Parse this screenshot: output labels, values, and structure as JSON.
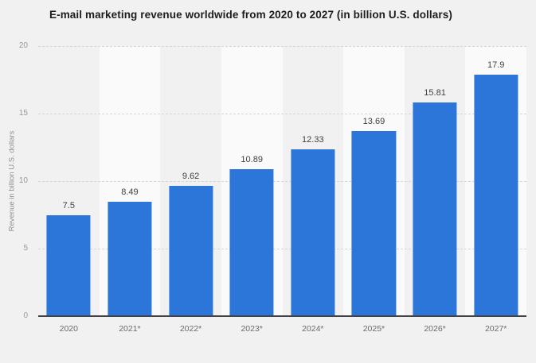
{
  "chart_data": {
    "type": "bar",
    "title": "E-mail marketing revenue worldwide from 2020 to 2027 (in billion U.S. dollars)",
    "categories": [
      "2020",
      "2021*",
      "2022*",
      "2023*",
      "2024*",
      "2025*",
      "2026*",
      "2027*"
    ],
    "values": [
      7.5,
      8.49,
      9.62,
      10.89,
      12.33,
      13.69,
      15.81,
      17.9
    ],
    "value_labels": [
      "7.5",
      "8.49",
      "9.62",
      "10.89",
      "12.33",
      "13.69",
      "15.81",
      "17.9"
    ],
    "xlabel": "",
    "ylabel": "Revenue in billion U.S. dollars",
    "ylim": [
      0,
      20
    ],
    "yticks": [
      0,
      5,
      10,
      15,
      20
    ],
    "grid": "horizontal-dashed",
    "legend": "none",
    "bar_color": "#2b76d8",
    "band_colors": {
      "odd": "#f1f1f2",
      "even": "#fafafa"
    },
    "axis_line_color": "#434347"
  }
}
